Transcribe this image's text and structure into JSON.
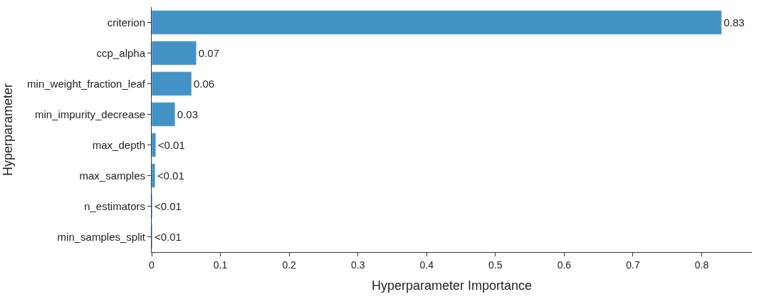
{
  "chart_data": {
    "type": "bar",
    "orientation": "horizontal",
    "xlabel": "Hyperparameter Importance",
    "ylabel": "Hyperparameter",
    "categories": [
      "criterion",
      "ccp_alpha",
      "min_weight_fraction_leaf",
      "min_impurity_decrease",
      "max_depth",
      "max_samples",
      "n_estimators",
      "min_samples_split"
    ],
    "values": [
      0.829,
      0.065,
      0.058,
      0.034,
      0.006,
      0.005,
      0.001,
      0.001
    ],
    "value_labels": [
      "0.83",
      "0.07",
      "0.06",
      "0.03",
      "<0.01",
      "<0.01",
      "<0.01",
      "<0.01"
    ],
    "color": "#4292c6",
    "xlim": [
      0,
      0.873
    ],
    "xticks": [
      0,
      0.1,
      0.2,
      0.3,
      0.4,
      0.5,
      0.6,
      0.7,
      0.8
    ],
    "legend": false
  }
}
